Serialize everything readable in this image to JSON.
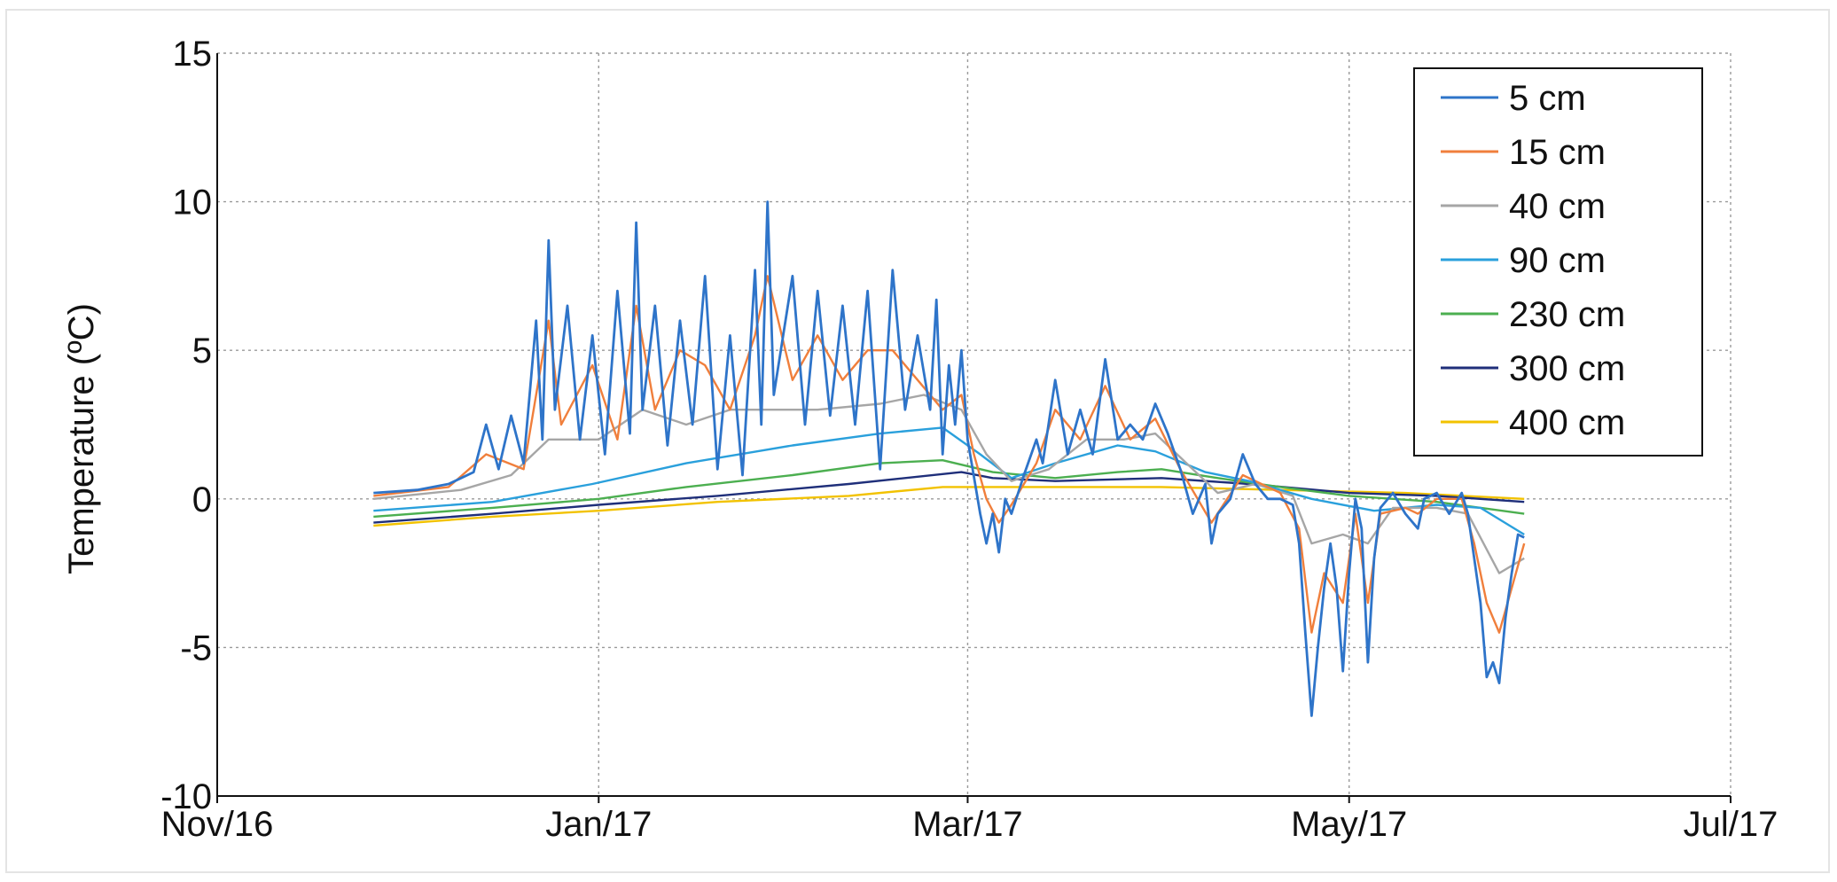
{
  "chart_data": {
    "type": "line",
    "title": "",
    "xlabel": "",
    "ylabel": "Temperature (ºC)",
    "ylim": [
      -10,
      15
    ],
    "xlim": [
      "2016-11-01",
      "2017-07-01"
    ],
    "yticks": [
      "15",
      "10",
      "5",
      "0",
      "-5",
      "-10"
    ],
    "xticks": [
      "Nov/16",
      "Jan/17",
      "Mar/17",
      "May/17",
      "Jul/17"
    ],
    "xtick_dates": [
      "2016-11-01",
      "2017-01-01",
      "2017-03-01",
      "2017-05-01",
      "2017-07-01"
    ],
    "grid": true,
    "legend_position": "top-right",
    "series": [
      {
        "name": "5 cm",
        "color": "#2e74c9",
        "points": [
          [
            "2016-11-26",
            0.2
          ],
          [
            "2016-12-03",
            0.3
          ],
          [
            "2016-12-08",
            0.5
          ],
          [
            "2016-12-12",
            0.9
          ],
          [
            "2016-12-14",
            2.5
          ],
          [
            "2016-12-16",
            1.0
          ],
          [
            "2016-12-18",
            2.8
          ],
          [
            "2016-12-20",
            1.2
          ],
          [
            "2016-12-22",
            6.0
          ],
          [
            "2016-12-23",
            2.0
          ],
          [
            "2016-12-24",
            8.7
          ],
          [
            "2016-12-25",
            3.0
          ],
          [
            "2016-12-27",
            6.5
          ],
          [
            "2016-12-29",
            2.0
          ],
          [
            "2016-12-31",
            5.5
          ],
          [
            "2017-01-02",
            1.5
          ],
          [
            "2017-01-04",
            7.0
          ],
          [
            "2017-01-06",
            2.2
          ],
          [
            "2017-01-07",
            9.3
          ],
          [
            "2017-01-08",
            3.0
          ],
          [
            "2017-01-10",
            6.5
          ],
          [
            "2017-01-12",
            1.8
          ],
          [
            "2017-01-14",
            6.0
          ],
          [
            "2017-01-16",
            2.5
          ],
          [
            "2017-01-18",
            7.5
          ],
          [
            "2017-01-20",
            1.0
          ],
          [
            "2017-01-22",
            5.5
          ],
          [
            "2017-01-24",
            0.8
          ],
          [
            "2017-01-26",
            7.7
          ],
          [
            "2017-01-27",
            2.5
          ],
          [
            "2017-01-28",
            10.0
          ],
          [
            "2017-01-29",
            3.5
          ],
          [
            "2017-02-01",
            7.5
          ],
          [
            "2017-02-03",
            2.5
          ],
          [
            "2017-02-05",
            7.0
          ],
          [
            "2017-02-07",
            2.8
          ],
          [
            "2017-02-09",
            6.5
          ],
          [
            "2017-02-11",
            2.5
          ],
          [
            "2017-02-13",
            7.0
          ],
          [
            "2017-02-15",
            1.0
          ],
          [
            "2017-02-17",
            7.7
          ],
          [
            "2017-02-19",
            3.0
          ],
          [
            "2017-02-21",
            5.5
          ],
          [
            "2017-02-23",
            3.0
          ],
          [
            "2017-02-24",
            6.7
          ],
          [
            "2017-02-25",
            1.5
          ],
          [
            "2017-02-26",
            4.5
          ],
          [
            "2017-02-27",
            2.5
          ],
          [
            "2017-02-28",
            5.0
          ],
          [
            "2017-03-01",
            2.0
          ],
          [
            "2017-03-03",
            -0.5
          ],
          [
            "2017-03-04",
            -1.5
          ],
          [
            "2017-03-05",
            -0.5
          ],
          [
            "2017-03-06",
            -1.8
          ],
          [
            "2017-03-07",
            0.0
          ],
          [
            "2017-03-08",
            -0.5
          ],
          [
            "2017-03-10",
            0.8
          ],
          [
            "2017-03-12",
            2.0
          ],
          [
            "2017-03-13",
            1.2
          ],
          [
            "2017-03-15",
            4.0
          ],
          [
            "2017-03-17",
            1.5
          ],
          [
            "2017-03-19",
            3.0
          ],
          [
            "2017-03-21",
            1.5
          ],
          [
            "2017-03-23",
            4.7
          ],
          [
            "2017-03-25",
            2.0
          ],
          [
            "2017-03-27",
            2.5
          ],
          [
            "2017-03-29",
            2.0
          ],
          [
            "2017-03-31",
            3.2
          ],
          [
            "2017-04-02",
            2.2
          ],
          [
            "2017-04-04",
            1.0
          ],
          [
            "2017-04-06",
            -0.5
          ],
          [
            "2017-04-08",
            0.5
          ],
          [
            "2017-04-09",
            -1.5
          ],
          [
            "2017-04-10",
            -0.5
          ],
          [
            "2017-04-12",
            0.0
          ],
          [
            "2017-04-14",
            1.5
          ],
          [
            "2017-04-16",
            0.5
          ],
          [
            "2017-04-18",
            0.0
          ],
          [
            "2017-04-20",
            0.0
          ],
          [
            "2017-04-22",
            -0.2
          ],
          [
            "2017-04-23",
            -1.5
          ],
          [
            "2017-04-24",
            -4.5
          ],
          [
            "2017-04-25",
            -7.3
          ],
          [
            "2017-04-26",
            -5.0
          ],
          [
            "2017-04-27",
            -3.0
          ],
          [
            "2017-04-28",
            -1.5
          ],
          [
            "2017-04-29",
            -3.0
          ],
          [
            "2017-04-30",
            -5.8
          ],
          [
            "2017-05-01",
            -2.5
          ],
          [
            "2017-05-02",
            0.0
          ],
          [
            "2017-05-03",
            -1.0
          ],
          [
            "2017-05-04",
            -5.5
          ],
          [
            "2017-05-05",
            -2.0
          ],
          [
            "2017-05-06",
            -0.3
          ],
          [
            "2017-05-08",
            0.2
          ],
          [
            "2017-05-10",
            -0.5
          ],
          [
            "2017-05-12",
            -1.0
          ],
          [
            "2017-05-13",
            0.0
          ],
          [
            "2017-05-15",
            0.2
          ],
          [
            "2017-05-17",
            -0.5
          ],
          [
            "2017-05-19",
            0.2
          ],
          [
            "2017-05-20",
            -0.5
          ],
          [
            "2017-05-21",
            -2.0
          ],
          [
            "2017-05-22",
            -3.5
          ],
          [
            "2017-05-23",
            -6.0
          ],
          [
            "2017-05-24",
            -5.5
          ],
          [
            "2017-05-25",
            -6.2
          ],
          [
            "2017-05-26",
            -4.0
          ],
          [
            "2017-05-27",
            -2.5
          ],
          [
            "2017-05-28",
            -1.2
          ],
          [
            "2017-05-29",
            -1.3
          ]
        ]
      },
      {
        "name": "15 cm",
        "color": "#f07f3c",
        "points": [
          [
            "2016-11-26",
            0.1
          ],
          [
            "2016-12-08",
            0.4
          ],
          [
            "2016-12-14",
            1.5
          ],
          [
            "2016-12-20",
            1.0
          ],
          [
            "2016-12-24",
            6.0
          ],
          [
            "2016-12-26",
            2.5
          ],
          [
            "2016-12-31",
            4.5
          ],
          [
            "2017-01-04",
            2.0
          ],
          [
            "2017-01-07",
            6.5
          ],
          [
            "2017-01-10",
            3.0
          ],
          [
            "2017-01-14",
            5.0
          ],
          [
            "2017-01-18",
            4.5
          ],
          [
            "2017-01-22",
            3.0
          ],
          [
            "2017-01-26",
            5.5
          ],
          [
            "2017-01-28",
            7.5
          ],
          [
            "2017-02-01",
            4.0
          ],
          [
            "2017-02-05",
            5.5
          ],
          [
            "2017-02-09",
            4.0
          ],
          [
            "2017-02-13",
            5.0
          ],
          [
            "2017-02-17",
            5.0
          ],
          [
            "2017-02-21",
            4.0
          ],
          [
            "2017-02-25",
            3.0
          ],
          [
            "2017-02-28",
            3.5
          ],
          [
            "2017-03-02",
            1.5
          ],
          [
            "2017-03-04",
            0.0
          ],
          [
            "2017-03-06",
            -0.8
          ],
          [
            "2017-03-08",
            -0.2
          ],
          [
            "2017-03-12",
            1.2
          ],
          [
            "2017-03-15",
            3.0
          ],
          [
            "2017-03-19",
            2.0
          ],
          [
            "2017-03-23",
            3.8
          ],
          [
            "2017-03-27",
            2.0
          ],
          [
            "2017-03-31",
            2.7
          ],
          [
            "2017-04-04",
            1.0
          ],
          [
            "2017-04-09",
            -0.8
          ],
          [
            "2017-04-14",
            0.8
          ],
          [
            "2017-04-20",
            0.2
          ],
          [
            "2017-04-23",
            -1.0
          ],
          [
            "2017-04-25",
            -4.5
          ],
          [
            "2017-04-27",
            -2.5
          ],
          [
            "2017-04-30",
            -3.5
          ],
          [
            "2017-05-02",
            -0.5
          ],
          [
            "2017-05-04",
            -3.5
          ],
          [
            "2017-05-06",
            -0.5
          ],
          [
            "2017-05-10",
            -0.3
          ],
          [
            "2017-05-12",
            -0.5
          ],
          [
            "2017-05-15",
            0.0
          ],
          [
            "2017-05-19",
            0.0
          ],
          [
            "2017-05-21",
            -1.5
          ],
          [
            "2017-05-23",
            -3.5
          ],
          [
            "2017-05-25",
            -4.5
          ],
          [
            "2017-05-27",
            -3.0
          ],
          [
            "2017-05-29",
            -1.5
          ]
        ]
      },
      {
        "name": "40 cm",
        "color": "#a6a6a6",
        "points": [
          [
            "2016-11-26",
            0.0
          ],
          [
            "2016-12-10",
            0.3
          ],
          [
            "2016-12-18",
            0.8
          ],
          [
            "2016-12-24",
            2.0
          ],
          [
            "2017-01-01",
            2.0
          ],
          [
            "2017-01-08",
            3.0
          ],
          [
            "2017-01-15",
            2.5
          ],
          [
            "2017-01-22",
            3.0
          ],
          [
            "2017-01-28",
            3.0
          ],
          [
            "2017-02-05",
            3.0
          ],
          [
            "2017-02-15",
            3.2
          ],
          [
            "2017-02-22",
            3.5
          ],
          [
            "2017-02-28",
            3.0
          ],
          [
            "2017-03-04",
            1.5
          ],
          [
            "2017-03-08",
            0.6
          ],
          [
            "2017-03-14",
            1.0
          ],
          [
            "2017-03-20",
            2.0
          ],
          [
            "2017-03-26",
            2.0
          ],
          [
            "2017-03-31",
            2.2
          ],
          [
            "2017-04-05",
            1.2
          ],
          [
            "2017-04-10",
            0.2
          ],
          [
            "2017-04-16",
            0.5
          ],
          [
            "2017-04-22",
            0.1
          ],
          [
            "2017-04-25",
            -1.5
          ],
          [
            "2017-04-30",
            -1.2
          ],
          [
            "2017-05-04",
            -1.5
          ],
          [
            "2017-05-08",
            -0.3
          ],
          [
            "2017-05-15",
            -0.3
          ],
          [
            "2017-05-20",
            -0.5
          ],
          [
            "2017-05-25",
            -2.5
          ],
          [
            "2017-05-29",
            -2.0
          ]
        ]
      },
      {
        "name": "90 cm",
        "color": "#2aa0dc",
        "points": [
          [
            "2016-11-26",
            -0.4
          ],
          [
            "2016-12-15",
            -0.1
          ],
          [
            "2016-12-31",
            0.5
          ],
          [
            "2017-01-15",
            1.2
          ],
          [
            "2017-02-01",
            1.8
          ],
          [
            "2017-02-15",
            2.2
          ],
          [
            "2017-02-25",
            2.4
          ],
          [
            "2017-03-03",
            1.5
          ],
          [
            "2017-03-08",
            0.7
          ],
          [
            "2017-03-15",
            1.2
          ],
          [
            "2017-03-25",
            1.8
          ],
          [
            "2017-03-31",
            1.6
          ],
          [
            "2017-04-08",
            0.9
          ],
          [
            "2017-04-15",
            0.6
          ],
          [
            "2017-04-25",
            0.0
          ],
          [
            "2017-05-05",
            -0.4
          ],
          [
            "2017-05-15",
            -0.2
          ],
          [
            "2017-05-22",
            -0.3
          ],
          [
            "2017-05-29",
            -1.2
          ]
        ]
      },
      {
        "name": "230 cm",
        "color": "#4caf50",
        "points": [
          [
            "2016-11-26",
            -0.6
          ],
          [
            "2016-12-15",
            -0.3
          ],
          [
            "2017-01-01",
            0.0
          ],
          [
            "2017-01-15",
            0.4
          ],
          [
            "2017-02-01",
            0.8
          ],
          [
            "2017-02-15",
            1.2
          ],
          [
            "2017-02-25",
            1.3
          ],
          [
            "2017-03-05",
            0.9
          ],
          [
            "2017-03-15",
            0.7
          ],
          [
            "2017-03-25",
            0.9
          ],
          [
            "2017-04-01",
            1.0
          ],
          [
            "2017-04-10",
            0.7
          ],
          [
            "2017-04-20",
            0.4
          ],
          [
            "2017-05-01",
            0.1
          ],
          [
            "2017-05-15",
            -0.1
          ],
          [
            "2017-05-29",
            -0.5
          ]
        ]
      },
      {
        "name": "300 cm",
        "color": "#1f2f7a",
        "points": [
          [
            "2016-11-26",
            -0.8
          ],
          [
            "2016-12-15",
            -0.5
          ],
          [
            "2017-01-01",
            -0.2
          ],
          [
            "2017-01-20",
            0.1
          ],
          [
            "2017-02-10",
            0.5
          ],
          [
            "2017-02-28",
            0.9
          ],
          [
            "2017-03-05",
            0.7
          ],
          [
            "2017-03-15",
            0.6
          ],
          [
            "2017-04-01",
            0.7
          ],
          [
            "2017-04-15",
            0.5
          ],
          [
            "2017-05-01",
            0.2
          ],
          [
            "2017-05-15",
            0.1
          ],
          [
            "2017-05-29",
            -0.1
          ]
        ]
      },
      {
        "name": "400 cm",
        "color": "#f2c200",
        "points": [
          [
            "2016-11-26",
            -0.9
          ],
          [
            "2016-12-15",
            -0.6
          ],
          [
            "2017-01-01",
            -0.4
          ],
          [
            "2017-01-20",
            -0.1
          ],
          [
            "2017-02-10",
            0.1
          ],
          [
            "2017-02-25",
            0.4
          ],
          [
            "2017-03-15",
            0.4
          ],
          [
            "2017-04-01",
            0.4
          ],
          [
            "2017-04-20",
            0.3
          ],
          [
            "2017-05-10",
            0.2
          ],
          [
            "2017-05-29",
            0.0
          ]
        ]
      }
    ]
  }
}
